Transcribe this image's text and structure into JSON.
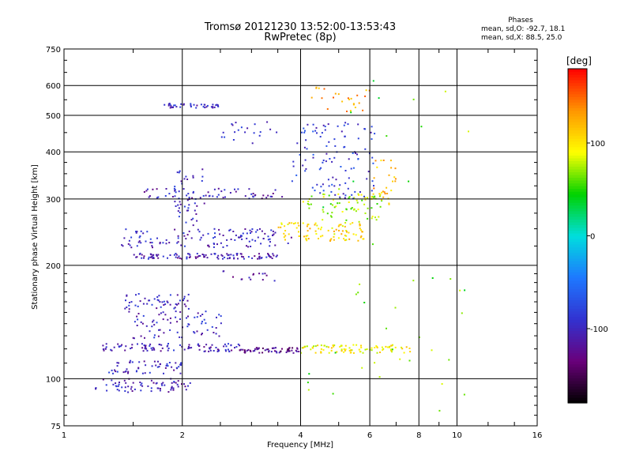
{
  "chart_data": {
    "type": "scatter",
    "title": "Tromsø 20121230 13:52:00-13:53:43",
    "subtitle": "RwPretec (8p)",
    "stats": {
      "heading": "Phases",
      "o_line": "mean, sd,O:  -92.7, 18.1",
      "x_line": "mean, sd,X:  88.5, 25.0"
    },
    "xlabel": "Frequency [MHz]",
    "ylabel": "Stationary phase Virtual Height [km]",
    "x_scale": "log",
    "y_scale": "log",
    "xlim": [
      1,
      16
    ],
    "ylim": [
      75,
      750
    ],
    "x_ticks": [
      1,
      2,
      4,
      6,
      8,
      10,
      16
    ],
    "x_tick_labels": [
      "1",
      "2",
      "4",
      "6",
      "8",
      "10",
      "16"
    ],
    "y_ticks": [
      75,
      100,
      200,
      300,
      400,
      500,
      600,
      750
    ],
    "y_tick_labels": [
      "75",
      "100",
      "200",
      "300",
      "400",
      "500",
      "600",
      "750"
    ],
    "grid": true,
    "colorbar": {
      "label": "[deg]",
      "range": [
        -180,
        180
      ],
      "ticks": [
        -100,
        0,
        100
      ],
      "tick_labels": [
        "-100",
        "0",
        "100"
      ],
      "colors": [
        "#000000",
        "#6a007a",
        "#3232d0",
        "#1e78ff",
        "#00dede",
        "#00d200",
        "#ffff00",
        "#ff9600",
        "#ff0000"
      ]
    },
    "traces": [
      {
        "name": "",
        "f_range": [
          1.2,
          2.1
        ],
        "h_range": [
          92,
          100
        ],
        "phase": -105,
        "count": 70
      },
      {
        "name": "",
        "f_range": [
          1.3,
          2.0
        ],
        "h_range": [
          103,
          112
        ],
        "phase": -100,
        "count": 55
      },
      {
        "name": "",
        "f_range": [
          1.25,
          2.8
        ],
        "h_range": [
          118,
          124
        ],
        "phase": -105,
        "count": 95
      },
      {
        "name": "",
        "f_range": [
          1.5,
          2.6
        ],
        "h_range": [
          128,
          152
        ],
        "phase": -100,
        "count": 70
      },
      {
        "name": "",
        "f_range": [
          1.4,
          2.1
        ],
        "h_range": [
          150,
          168
        ],
        "phase": -98,
        "count": 55
      },
      {
        "name": "",
        "f_range": [
          2.8,
          4.0
        ],
        "h_range": [
          117,
          121
        ],
        "phase": -125,
        "count": 60
      },
      {
        "name": "",
        "f_range": [
          4.0,
          7.6
        ],
        "h_range": [
          117,
          123
        ],
        "phase": 95,
        "count": 90
      },
      {
        "name": "",
        "f_range": [
          1.5,
          3.5
        ],
        "h_range": [
          208,
          215
        ],
        "phase": -105,
        "count": 110
      },
      {
        "name": "",
        "f_range": [
          1.4,
          3.8
        ],
        "h_range": [
          223,
          250
        ],
        "phase": -100,
        "count": 120
      },
      {
        "name": "",
        "f_range": [
          3.5,
          5.8
        ],
        "h_range": [
          232,
          260
        ],
        "phase": 105,
        "count": 90
      },
      {
        "name": "",
        "f_range": [
          4.0,
          6.5
        ],
        "h_range": [
          260,
          310
        ],
        "phase": 75,
        "count": 70
      },
      {
        "name": "",
        "f_range": [
          3.8,
          6.2
        ],
        "h_range": [
          300,
          480
        ],
        "phase": -85,
        "count": 110
      },
      {
        "name": "",
        "f_range": [
          1.6,
          3.6
        ],
        "h_range": [
          300,
          320
        ],
        "phase": -105,
        "count": 55
      },
      {
        "name": "",
        "f_range": [
          1.9,
          2.3
        ],
        "h_range": [
          255,
          360
        ],
        "phase": -100,
        "count": 50
      },
      {
        "name": "",
        "f_range": [
          1.8,
          2.5
        ],
        "h_range": [
          523,
          538
        ],
        "phase": -100,
        "count": 40
      },
      {
        "name": "",
        "f_range": [
          6.0,
          7.0
        ],
        "h_range": [
          290,
          380
        ],
        "phase": 120,
        "count": 30
      },
      {
        "name": "",
        "f_range": [
          4.2,
          6.0
        ],
        "h_range": [
          510,
          600
        ],
        "phase": 130,
        "count": 25
      },
      {
        "name": "",
        "f_range": [
          2.5,
          3.5
        ],
        "h_range": [
          420,
          480
        ],
        "phase": -95,
        "count": 20
      },
      {
        "name": "",
        "f_range": [
          4.0,
          11.0
        ],
        "h_range": [
          80,
          640
        ],
        "phase": 60,
        "count": 45
      },
      {
        "name": "",
        "f_range": [
          2.5,
          3.5
        ],
        "h_range": [
          180,
          195
        ],
        "phase": -110,
        "count": 15
      }
    ]
  }
}
